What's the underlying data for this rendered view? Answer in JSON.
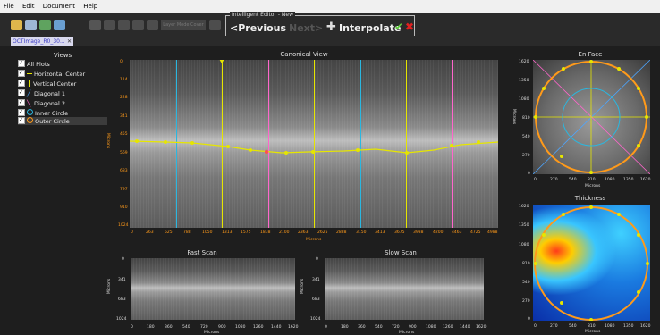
{
  "menu": [
    "File",
    "Edit",
    "Document",
    "Help"
  ],
  "tab": {
    "label": "OCTImage_R0_30...",
    "close": "✕"
  },
  "toolbar": {
    "hidden_label": "Layer Mode Cover"
  },
  "editor": {
    "title": "Intelligent Editor - New",
    "previous": "<Previous",
    "next": "Next>",
    "interpolate": "Interpolate"
  },
  "views": {
    "title": "Views",
    "items": [
      "All Plots",
      "Horizontal Center",
      "Vertical Center",
      "Diagonal 1",
      "Diagonal 2",
      "Inner Circle",
      "Outer Circle"
    ]
  },
  "canonical": {
    "title": "Canonical View",
    "ylabel": "Microns",
    "xlabel": "Microns",
    "yticks": [
      "0",
      "114",
      "228",
      "341",
      "455",
      "569",
      "683",
      "797",
      "910",
      "1024"
    ],
    "xticks": [
      "0",
      "263",
      "525",
      "788",
      "1050",
      "1313",
      "1575",
      "1838",
      "2100",
      "2363",
      "2625",
      "2888",
      "3150",
      "3413",
      "3675",
      "3938",
      "4200",
      "4463",
      "4725",
      "4988"
    ]
  },
  "fast_scan": {
    "title": "Fast Scan",
    "ylabel": "Microns",
    "xlabel": "Microns",
    "yticks": [
      "0",
      "341",
      "683",
      "1024"
    ],
    "xticks": [
      "0",
      "180",
      "360",
      "540",
      "720",
      "900",
      "1080",
      "1260",
      "1440",
      "1620"
    ]
  },
  "slow_scan": {
    "title": "Slow Scan",
    "ylabel": "Microns",
    "xlabel": "Microns",
    "yticks": [
      "0",
      "341",
      "683",
      "1024"
    ],
    "xticks": [
      "0",
      "180",
      "360",
      "540",
      "720",
      "900",
      "1080",
      "1260",
      "1440",
      "1620"
    ]
  },
  "en_face": {
    "title": "En Face",
    "ylabel": "Microns",
    "xlabel": "Microns",
    "yticks": [
      "1620",
      "1350",
      "1080",
      "810",
      "540",
      "270",
      "0"
    ],
    "xticks": [
      "0",
      "270",
      "540",
      "810",
      "1080",
      "1350",
      "1620"
    ]
  },
  "thickness": {
    "title": "Thickness",
    "xlabel": "Microns",
    "yticks": [
      "1620",
      "1350",
      "1080",
      "810",
      "540",
      "270",
      "0"
    ],
    "xticks": [
      "0",
      "270",
      "540",
      "810",
      "1080",
      "1350",
      "1620"
    ]
  },
  "colors": {
    "accent": "#ff9a1a",
    "horizontal": "#e6e600",
    "vertical": "#e6e600",
    "diag1": "#4da6ff",
    "diag2": "#ff66cc",
    "circle_inner": "#2ab7e0",
    "circle_outer": "#ff9a1a"
  }
}
